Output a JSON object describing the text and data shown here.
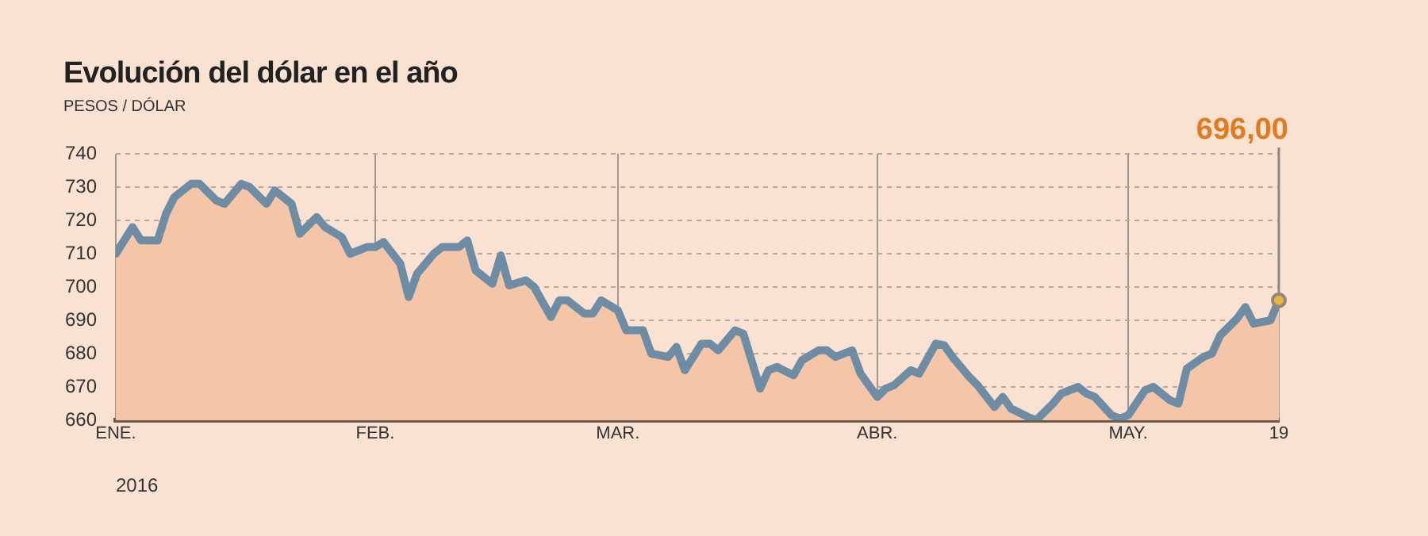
{
  "chart_data": {
    "type": "area",
    "title": "Evolución del dólar en el año",
    "subtitle": "PESOS / DÓLAR",
    "xlabel": "2016",
    "x": [
      "2016-01-01",
      "2016-01-03",
      "2016-01-04",
      "2016-01-06",
      "2016-01-07",
      "2016-01-08",
      "2016-01-10",
      "2016-01-11",
      "2016-01-13",
      "2016-01-14",
      "2016-01-16",
      "2016-01-17",
      "2016-01-19",
      "2016-01-20",
      "2016-01-22",
      "2016-01-23",
      "2016-01-25",
      "2016-01-26",
      "2016-01-28",
      "2016-01-29",
      "2016-01-31",
      "2016-02-01",
      "2016-02-02",
      "2016-02-04",
      "2016-02-05",
      "2016-02-06",
      "2016-02-08",
      "2016-02-09",
      "2016-02-11",
      "2016-02-12",
      "2016-02-13",
      "2016-02-15",
      "2016-02-16",
      "2016-02-17",
      "2016-02-19",
      "2016-02-20",
      "2016-02-22",
      "2016-02-23",
      "2016-02-24",
      "2016-02-26",
      "2016-02-27",
      "2016-02-28",
      "2016-03-01",
      "2016-03-02",
      "2016-03-04",
      "2016-03-05",
      "2016-03-07",
      "2016-03-08",
      "2016-03-09",
      "2016-03-11",
      "2016-03-12",
      "2016-03-13",
      "2016-03-15",
      "2016-03-16",
      "2016-03-18",
      "2016-03-19",
      "2016-03-20",
      "2016-03-22",
      "2016-03-23",
      "2016-03-25",
      "2016-03-26",
      "2016-03-27",
      "2016-03-29",
      "2016-03-30",
      "2016-04-01",
      "2016-04-02",
      "2016-04-03",
      "2016-04-05",
      "2016-04-06",
      "2016-04-08",
      "2016-04-09",
      "2016-04-10",
      "2016-04-12",
      "2016-04-13",
      "2016-04-15",
      "2016-04-16",
      "2016-04-17",
      "2016-04-19",
      "2016-04-20",
      "2016-04-22",
      "2016-04-23",
      "2016-04-25",
      "2016-04-26",
      "2016-04-27",
      "2016-04-29",
      "2016-04-30",
      "2016-05-01",
      "2016-05-03",
      "2016-05-04",
      "2016-05-06",
      "2016-05-07",
      "2016-05-08",
      "2016-05-10",
      "2016-05-11",
      "2016-05-12",
      "2016-05-14",
      "2016-05-15",
      "2016-05-16",
      "2016-05-18",
      "2016-05-19"
    ],
    "series": [
      {
        "color": "#f4c5a6",
        "values": [
          710,
          718,
          714,
          714,
          722,
          727,
          731,
          731,
          726,
          725,
          731,
          730,
          725,
          729,
          725,
          716,
          721,
          718,
          715,
          710,
          712,
          712,
          713.5,
          707,
          697,
          704,
          710,
          712,
          712,
          714,
          705,
          701,
          709.5,
          700.5,
          702,
          700,
          691,
          696,
          696,
          692,
          692,
          696,
          693,
          687,
          687,
          680,
          679,
          682,
          675,
          683,
          683,
          681,
          687,
          686,
          669.5,
          675,
          676,
          673.5,
          678,
          681,
          681,
          679,
          681,
          674,
          667,
          669.5,
          670.5,
          675,
          674,
          683,
          682.5,
          679,
          673,
          670.5,
          664,
          667,
          663.5,
          661,
          660,
          665,
          668,
          670,
          668,
          667,
          661.5,
          660.5,
          661.5,
          669,
          670,
          666,
          665,
          675.5,
          679,
          680,
          685.5,
          690.5,
          694,
          689,
          690,
          696
        ]
      }
    ],
    "xlim": [
      "2016-01-01",
      "2016-05-19"
    ],
    "xticks": [
      {
        "value": "2016-01-01",
        "label": "ENE."
      },
      {
        "value": "2016-02-01",
        "label": "FEB."
      },
      {
        "value": "2016-03-01",
        "label": "MAR."
      },
      {
        "value": "2016-04-01",
        "label": "ABR."
      },
      {
        "value": "2016-05-01",
        "label": "MAY."
      },
      {
        "value": "2016-05-19",
        "label": "19"
      }
    ],
    "ylim": [
      660,
      740
    ],
    "yticks": [
      660,
      670,
      680,
      690,
      700,
      710,
      720,
      730,
      740
    ],
    "grid": true,
    "legend": false,
    "marker": "none",
    "line_style": "solid",
    "annotations": [
      {
        "text": "696,00",
        "x": "2016-05-19",
        "y": 696
      }
    ]
  }
}
